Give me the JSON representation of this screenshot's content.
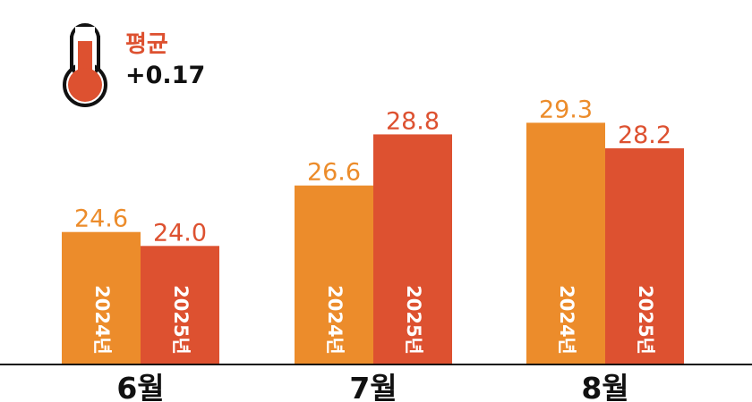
{
  "chart_data": {
    "type": "bar",
    "categories": [
      "6월",
      "7월",
      "8월"
    ],
    "series": [
      {
        "name": "2024년",
        "values": [
          24.6,
          26.6,
          29.3
        ]
      },
      {
        "name": "2025년",
        "values": [
          24.0,
          28.8,
          28.2
        ]
      }
    ],
    "ylim": [
      18.9,
      30.2
    ],
    "grid": false,
    "legend": "none"
  },
  "colors": {
    "series_2024": "#ec8c2b",
    "series_2025": "#dd5130",
    "label_2024": "#ec8c2b",
    "label_2025": "#dd5130",
    "thermometer": "#dd5130",
    "axis": "#111111"
  },
  "annotation": {
    "icon": "thermometer-icon",
    "title": "평균",
    "value": "+0.17"
  }
}
